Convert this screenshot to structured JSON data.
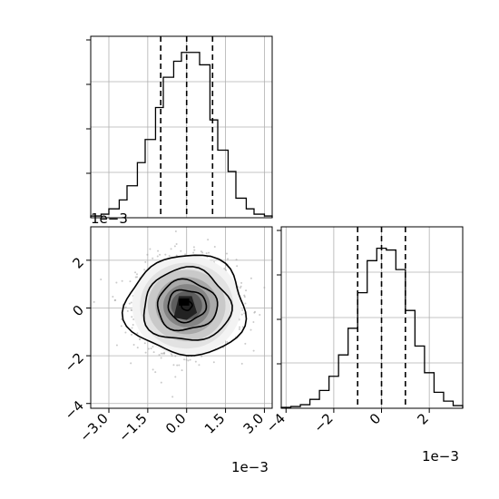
{
  "chart_data": [
    {
      "panel": "marginal-x",
      "type": "histogram",
      "grid": true,
      "quantile_lines": [
        -0.001,
        0.0,
        0.001
      ],
      "xlim": [
        -0.0037,
        0.0033
      ],
      "ylim": [
        0,
        1.0
      ],
      "bin_edges": [
        -0.0037,
        -0.0033,
        -0.003,
        -0.0026,
        -0.0023,
        -0.0019,
        -0.0016,
        -0.0012,
        -0.0009,
        -0.0005,
        -0.0002,
        0.0002,
        0.0005,
        0.0009,
        0.0012,
        0.0016,
        0.0019,
        0.0023,
        0.0026,
        0.003,
        0.0033
      ],
      "values": [
        0.01,
        0.02,
        0.05,
        0.1,
        0.18,
        0.31,
        0.44,
        0.62,
        0.79,
        0.88,
        0.93,
        0.93,
        0.86,
        0.55,
        0.38,
        0.26,
        0.11,
        0.05,
        0.02,
        0.01
      ]
    },
    {
      "panel": "joint",
      "type": "scatter-density",
      "x_tick_labels": [
        "−3.0",
        "−1.5",
        "0.0",
        "1.5",
        "3.0"
      ],
      "x_ticks": [
        -0.003,
        -0.0015,
        0.0,
        0.0015,
        0.003
      ],
      "y_tick_labels": [
        "−4",
        "−2",
        "0",
        "2"
      ],
      "y_ticks": [
        -0.004,
        -0.002,
        0.0,
        0.002
      ],
      "x_offset_label": "1e−3",
      "y_offset_label": "1e−3",
      "xlim": [
        -0.0037,
        0.0033
      ],
      "ylim": [
        -0.0042,
        0.0034
      ],
      "center": [
        -0.0,
        0.0001
      ],
      "contour_radii": [
        0.0002,
        0.0007,
        0.0011,
        0.0016,
        0.0022
      ],
      "grid": true
    },
    {
      "panel": "marginal-y",
      "type": "histogram",
      "grid": true,
      "x_tick_labels": [
        "−4",
        "−2",
        "0",
        "2"
      ],
      "x_ticks": [
        -0.004,
        -0.002,
        0.0,
        0.002
      ],
      "x_offset_label": "1e−3",
      "quantile_lines": [
        -0.001,
        0.0,
        0.001
      ],
      "xlim": [
        -0.0042,
        0.0034
      ],
      "ylim": [
        0,
        1.0
      ],
      "bin_edges": [
        -0.0042,
        -0.0038,
        -0.0034,
        -0.003,
        -0.0026,
        -0.0022,
        -0.0018,
        -0.0014,
        -0.001,
        -0.0006,
        -0.0002,
        0.0002,
        0.0006,
        0.001,
        0.0014,
        0.0018,
        0.0022,
        0.0026,
        0.003,
        0.0034
      ],
      "values": [
        0.005,
        0.01,
        0.02,
        0.05,
        0.1,
        0.18,
        0.3,
        0.45,
        0.65,
        0.83,
        0.9,
        0.89,
        0.78,
        0.55,
        0.35,
        0.2,
        0.09,
        0.04,
        0.015
      ]
    }
  ],
  "colors": {
    "line": "#000000",
    "grid": "#b0b0b0",
    "scatter": "#9e9e9e",
    "density_dark": "#222222",
    "density_light": "#f0f0f0"
  }
}
